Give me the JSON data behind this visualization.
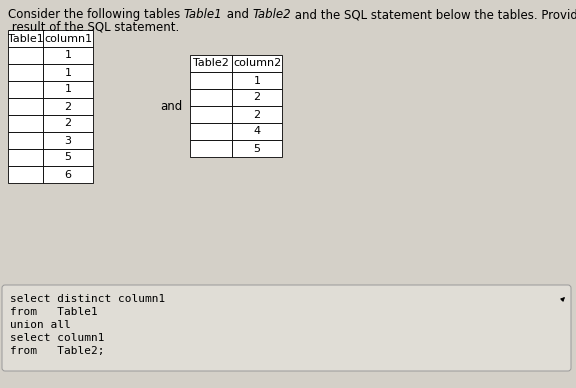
{
  "table1_header": [
    "Table1",
    "column1"
  ],
  "table1_data": [
    "1",
    "1",
    "1",
    "2",
    "2",
    "3",
    "5",
    "6"
  ],
  "table2_header": [
    "Table2",
    "column2"
  ],
  "table2_data": [
    "1",
    "2",
    "2",
    "4",
    "5"
  ],
  "and_text": "and",
  "sql_lines": [
    "select distinct column1",
    "from   Table1",
    "union all",
    "select column1",
    "from   Table2;"
  ],
  "bg_color": "#d4d0c8",
  "table_bg": "#ffffff",
  "table_border": "#000000",
  "sql_box_bg": "#e0ddd6",
  "sql_box_border": "#999999",
  "font_size_title": 8.5,
  "font_size_table": 8,
  "font_size_sql": 8
}
